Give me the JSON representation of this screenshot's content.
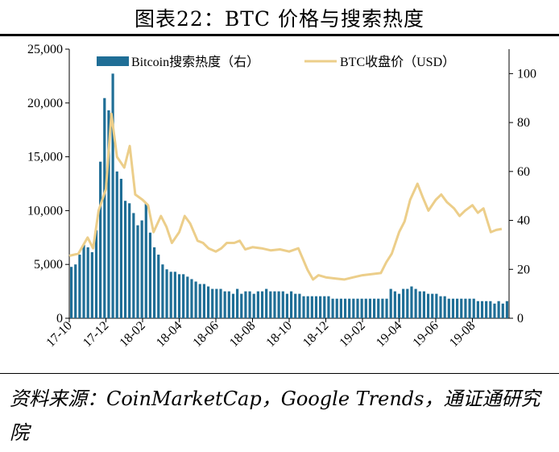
{
  "header": {
    "title": "图表22：BTC 价格与搜索热度"
  },
  "footer": {
    "source": "资料来源：CoinMarketCap，Google Trends，通证通研究院"
  },
  "colors": {
    "bar": "#1f6e96",
    "line": "#ecce8a",
    "axis": "#000000"
  },
  "chart_data": {
    "type": "bar+line",
    "title": "BTC 价格与搜索热度",
    "legend": {
      "placement": "top",
      "bar_label": "Bitcoin搜索热度（右）",
      "line_label": "BTC收盘价（USD）"
    },
    "y_left": {
      "range": [
        0,
        25000
      ],
      "ticks": [
        0,
        5000,
        10000,
        15000,
        20000,
        25000
      ],
      "tick_labels": [
        "0",
        "5,000",
        "10,000",
        "15,000",
        "20,000",
        "25,000"
      ]
    },
    "y_right": {
      "range": [
        0,
        110
      ],
      "ticks": [
        0,
        20,
        40,
        60,
        80,
        100
      ],
      "tick_labels": [
        "0",
        "20",
        "40",
        "60",
        "80",
        "100"
      ]
    },
    "x_axis": {
      "start": "2017-10",
      "end": "2019-09",
      "tick_months": [
        0,
        2,
        4,
        6,
        8,
        10,
        12,
        14,
        16,
        18,
        20,
        22
      ],
      "tick_labels": [
        "17-10",
        "17-12",
        "18-02",
        "18-04",
        "18-06",
        "18-08",
        "18-10",
        "18-12",
        "19-02",
        "19-04",
        "19-06",
        "19-08"
      ]
    },
    "series": [
      {
        "name": "Bitcoin搜索热度（右）",
        "type": "bar",
        "axis": "right",
        "x_weeks": [
          0,
          1,
          2,
          3,
          4,
          5,
          6,
          7,
          8,
          9,
          10,
          11,
          12,
          13,
          14,
          15,
          16,
          17,
          18,
          19,
          20,
          21,
          22,
          23,
          24,
          25,
          26,
          27,
          28,
          29,
          30,
          31,
          32,
          33,
          34,
          35,
          36,
          37,
          38,
          39,
          40,
          41,
          42,
          43,
          44,
          45,
          46,
          47,
          48,
          49,
          50,
          51,
          52,
          53,
          54,
          55,
          56,
          57,
          58,
          59,
          60,
          61,
          62,
          63,
          64,
          65,
          66,
          67,
          68,
          69,
          70,
          71,
          72,
          73,
          74,
          75,
          76,
          77,
          78,
          79,
          80,
          81,
          82,
          83,
          84,
          85,
          86,
          87,
          88,
          89,
          90,
          91,
          92,
          93,
          94,
          95,
          96,
          97,
          98,
          99,
          100,
          101,
          102,
          103,
          104,
          105
        ],
        "values": [
          21,
          22,
          26,
          30,
          29,
          27,
          36,
          64,
          90,
          85,
          100,
          60,
          57,
          48,
          47,
          43,
          38,
          40,
          47,
          35,
          29,
          26,
          22,
          20,
          19,
          19,
          18,
          18,
          17,
          16,
          15,
          14,
          14,
          13,
          12,
          12,
          12,
          11,
          11,
          10,
          12,
          10,
          11,
          11,
          10,
          11,
          11,
          12,
          11,
          11,
          11,
          11,
          10,
          11,
          10,
          10,
          9,
          9,
          9,
          9,
          9,
          9,
          9,
          8,
          8,
          8,
          8,
          8,
          8,
          8,
          8,
          8,
          8,
          8,
          8,
          8,
          8,
          12,
          11,
          10,
          12,
          12,
          13,
          12,
          11,
          11,
          10,
          10,
          10,
          9,
          9,
          8,
          8,
          8,
          8,
          8,
          8,
          8,
          7,
          7,
          7,
          7,
          6,
          7,
          6,
          7
        ],
        "note": "right-axis search index"
      },
      {
        "name": "BTC收盘价（USD）",
        "type": "line",
        "axis": "left",
        "x_months": [
          0,
          0.5,
          1,
          1.3,
          1.6,
          2,
          2.3,
          2.6,
          3,
          3.3,
          3.6,
          4,
          4.3,
          4.6,
          5,
          5.3,
          5.6,
          6,
          6.3,
          6.6,
          7,
          7.3,
          7.6,
          8,
          8.3,
          8.6,
          9,
          9.3,
          9.6,
          10,
          10.5,
          11,
          11.5,
          12,
          12.5,
          13,
          13.3,
          13.6,
          14,
          14.5,
          15,
          15.5,
          16,
          16.5,
          17,
          17.3,
          17.6,
          18,
          18.3,
          18.6,
          19,
          19.3,
          19.6,
          20,
          20.3,
          20.6,
          21,
          21.3,
          21.6,
          22,
          22.3,
          22.6,
          23,
          23.3,
          23.6
        ],
        "values": [
          5800,
          6000,
          7500,
          6500,
          10000,
          12000,
          19000,
          15000,
          14000,
          16000,
          11500,
          11000,
          10500,
          8000,
          9500,
          8500,
          7000,
          8000,
          9500,
          8800,
          7200,
          7000,
          6500,
          6200,
          6500,
          7000,
          7000,
          7200,
          6400,
          6600,
          6500,
          6300,
          6400,
          6200,
          6500,
          4500,
          3600,
          4000,
          3800,
          3700,
          3600,
          3800,
          4000,
          4100,
          4200,
          5200,
          6000,
          8000,
          9000,
          11000,
          12500,
          11200,
          10000,
          11000,
          11500,
          10800,
          10200,
          9500,
          10000,
          10500,
          9800,
          10200,
          8000,
          8200,
          8300
        ]
      }
    ]
  }
}
